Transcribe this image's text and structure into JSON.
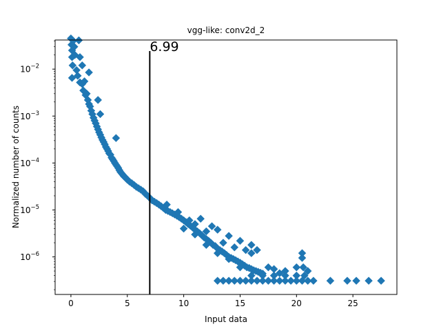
{
  "chart_data": {
    "type": "scatter",
    "title": "vgg-like: conv2d_2",
    "xlabel": "Input data",
    "ylabel": "Normalized number of counts",
    "xlim": [
      -1.4,
      28.9
    ],
    "ylim_log10": [
      -6.8,
      -1.38
    ],
    "y_scale": "log",
    "grid": false,
    "legend": "none",
    "marker": "diamond",
    "series_color": "#1f77b4",
    "x_ticks": [
      0,
      5,
      10,
      15,
      20,
      25
    ],
    "x_tick_labels": [
      "0",
      "5",
      "10",
      "15",
      "20",
      "25"
    ],
    "y_ticks_exp": [
      -6,
      -5,
      -4,
      -3,
      -2
    ],
    "y_tick_labels": [
      "10",
      "10",
      "10",
      "10",
      "10"
    ],
    "y_tick_exp_labels": [
      "−6",
      "−5",
      "−4",
      "−3",
      "−2"
    ],
    "threshold": {
      "x": 6.99,
      "label": "6.99",
      "color": "#000000"
    },
    "points": [
      [
        0.0,
        0.045
      ],
      [
        0.05,
        0.033
      ],
      [
        0.1,
        0.025
      ],
      [
        0.1,
        0.018
      ],
      [
        0.15,
        0.012
      ],
      [
        0.1,
        0.0065
      ],
      [
        0.2,
        0.04
      ],
      [
        0.3,
        0.03
      ],
      [
        0.35,
        0.02
      ],
      [
        0.5,
        0.0095
      ],
      [
        0.6,
        0.0072
      ],
      [
        0.7,
        0.041
      ],
      [
        0.8,
        0.018
      ],
      [
        0.8,
        0.0052
      ],
      [
        1.0,
        0.0048
      ],
      [
        1.0,
        0.012
      ],
      [
        1.1,
        0.0035
      ],
      [
        1.2,
        0.0055
      ],
      [
        1.3,
        0.0028
      ],
      [
        1.4,
        0.003
      ],
      [
        1.5,
        0.0022
      ],
      [
        1.6,
        0.0018
      ],
      [
        1.6,
        0.0085
      ],
      [
        1.7,
        0.0016
      ],
      [
        1.8,
        0.0013
      ],
      [
        1.9,
        0.0011
      ],
      [
        2.0,
        0.00092
      ],
      [
        2.1,
        0.0008
      ],
      [
        2.2,
        0.0007
      ],
      [
        2.3,
        0.0006
      ],
      [
        2.4,
        0.00052
      ],
      [
        2.4,
        0.0022
      ],
      [
        2.5,
        0.00045
      ],
      [
        2.6,
        0.0004
      ],
      [
        2.6,
        0.0011
      ],
      [
        2.7,
        0.00035
      ],
      [
        2.8,
        0.00031
      ],
      [
        2.9,
        0.00028
      ],
      [
        3.0,
        0.00025
      ],
      [
        3.1,
        0.00022
      ],
      [
        3.2,
        0.0002
      ],
      [
        3.3,
        0.00018
      ],
      [
        3.4,
        0.00016
      ],
      [
        3.5,
        0.00015
      ],
      [
        3.6,
        0.00013
      ],
      [
        3.7,
        0.00012
      ],
      [
        3.8,
        0.00011
      ],
      [
        3.9,
        0.0001
      ],
      [
        4.0,
        9.2e-05
      ],
      [
        4.1,
        8.5e-05
      ],
      [
        4.2,
        7.8e-05
      ],
      [
        4.3,
        7e-05
      ],
      [
        4.4,
        6.4e-05
      ],
      [
        4.5,
        6e-05
      ],
      [
        4.6,
        5.6e-05
      ],
      [
        4.7,
        5.2e-05
      ],
      [
        4.8,
        5e-05
      ],
      [
        4.9,
        4.7e-05
      ],
      [
        5.0,
        4.4e-05
      ],
      [
        5.2,
        4e-05
      ],
      [
        5.4,
        3.7e-05
      ],
      [
        5.6,
        3.4e-05
      ],
      [
        5.8,
        3.1e-05
      ],
      [
        6.0,
        2.9e-05
      ],
      [
        6.2,
        2.7e-05
      ],
      [
        6.4,
        2.5e-05
      ],
      [
        6.6,
        2.2e-05
      ],
      [
        6.8,
        2e-05
      ],
      [
        7.0,
        1.8e-05
      ],
      [
        7.2,
        1.6e-05
      ],
      [
        7.4,
        1.5e-05
      ],
      [
        7.6,
        1.4e-05
      ],
      [
        7.8,
        1.3e-05
      ],
      [
        8.0,
        1.2e-05
      ],
      [
        8.2,
        1.1e-05
      ],
      [
        8.4,
        1e-05
      ],
      [
        8.6,
        9.5e-06
      ],
      [
        8.8,
        9e-06
      ],
      [
        9.0,
        8.5e-06
      ],
      [
        9.2,
        8e-06
      ],
      [
        9.4,
        7.5e-06
      ],
      [
        9.6,
        7e-06
      ],
      [
        9.8,
        6.5e-06
      ],
      [
        10.0,
        6e-06
      ],
      [
        10.2,
        5.5e-06
      ],
      [
        10.4,
        5e-06
      ],
      [
        10.6,
        4.6e-06
      ],
      [
        10.8,
        4.2e-06
      ],
      [
        11.0,
        3.8e-06
      ],
      [
        11.2,
        3.5e-06
      ],
      [
        11.4,
        3.2e-06
      ],
      [
        11.6,
        2.9e-06
      ],
      [
        11.8,
        2.6e-06
      ],
      [
        12.0,
        2.4e-06
      ],
      [
        12.2,
        2.2e-06
      ],
      [
        12.4,
        2e-06
      ],
      [
        12.6,
        1.8e-06
      ],
      [
        12.8,
        1.7e-06
      ],
      [
        13.0,
        1.5e-06
      ],
      [
        13.2,
        1.4e-06
      ],
      [
        13.4,
        1.3e-06
      ],
      [
        13.6,
        1.2e-06
      ],
      [
        13.8,
        1.1e-06
      ],
      [
        14.0,
        1e-06
      ],
      [
        14.2,
        9.5e-07
      ],
      [
        14.4,
        9e-07
      ],
      [
        14.6,
        8.5e-07
      ],
      [
        14.8,
        8e-07
      ],
      [
        15.0,
        7.5e-07
      ],
      [
        15.2,
        7e-07
      ],
      [
        15.4,
        6.5e-07
      ],
      [
        15.6,
        6e-07
      ],
      [
        15.8,
        5.8e-07
      ],
      [
        16.0,
        5.5e-07
      ],
      [
        16.2,
        5.2e-07
      ],
      [
        16.4,
        5e-07
      ],
      [
        16.6,
        4.8e-07
      ],
      [
        16.8,
        4.6e-07
      ],
      [
        17.0,
        4.4e-07
      ],
      [
        11.5,
        6.5e-06
      ],
      [
        12.5,
        4.5e-06
      ],
      [
        13.0,
        3.8e-06
      ],
      [
        14.0,
        2.8e-06
      ],
      [
        15.0,
        2.2e-06
      ],
      [
        16.0,
        1.8e-06
      ],
      [
        16.5,
        1.4e-06
      ],
      [
        17.5,
        6e-07
      ],
      [
        18.0,
        5.5e-07
      ],
      [
        18.5,
        4.5e-07
      ],
      [
        19.0,
        5e-07
      ],
      [
        20.0,
        6e-07
      ],
      [
        20.5,
        1.2e-06
      ],
      [
        20.5,
        9.5e-07
      ],
      [
        20.6,
        6e-07
      ],
      [
        20.7,
        4e-07
      ],
      [
        21.0,
        5e-07
      ],
      [
        15.5,
        1.4e-06
      ],
      [
        16.0,
        1.2e-06
      ],
      [
        14.5,
        1.6e-06
      ],
      [
        13.5,
        2e-06
      ],
      [
        12.0,
        3.5e-06
      ],
      [
        11.0,
        5e-06
      ],
      [
        10.5,
        6e-06
      ],
      [
        9.5,
        9e-06
      ],
      [
        8.5,
        1.3e-05
      ],
      [
        10.0,
        4e-06
      ],
      [
        11.0,
        3e-06
      ],
      [
        12.0,
        1.8e-06
      ],
      [
        13.0,
        1.2e-06
      ],
      [
        14.0,
        9e-07
      ],
      [
        15.0,
        6e-07
      ],
      [
        16.0,
        4e-07
      ],
      [
        17.0,
        4e-07
      ],
      [
        18.0,
        4e-07
      ],
      [
        19.0,
        4e-07
      ],
      [
        20.0,
        4e-07
      ],
      [
        13.0,
        3.1e-07
      ],
      [
        13.5,
        3.1e-07
      ],
      [
        14.0,
        3.1e-07
      ],
      [
        14.5,
        3.1e-07
      ],
      [
        15.0,
        3.1e-07
      ],
      [
        15.5,
        3.1e-07
      ],
      [
        16.0,
        3.1e-07
      ],
      [
        16.5,
        3.1e-07
      ],
      [
        17.0,
        3.1e-07
      ],
      [
        17.5,
        3.1e-07
      ],
      [
        18.0,
        3.1e-07
      ],
      [
        18.5,
        3.1e-07
      ],
      [
        19.0,
        3.1e-07
      ],
      [
        19.5,
        3.1e-07
      ],
      [
        20.0,
        3.1e-07
      ],
      [
        20.5,
        3.1e-07
      ],
      [
        21.0,
        3.1e-07
      ],
      [
        21.5,
        3.1e-07
      ],
      [
        23.0,
        3.1e-07
      ],
      [
        24.5,
        3.1e-07
      ],
      [
        25.3,
        3.1e-07
      ],
      [
        26.4,
        3.1e-07
      ],
      [
        27.5,
        3.1e-07
      ],
      [
        4.0,
        0.00034
      ]
    ]
  }
}
